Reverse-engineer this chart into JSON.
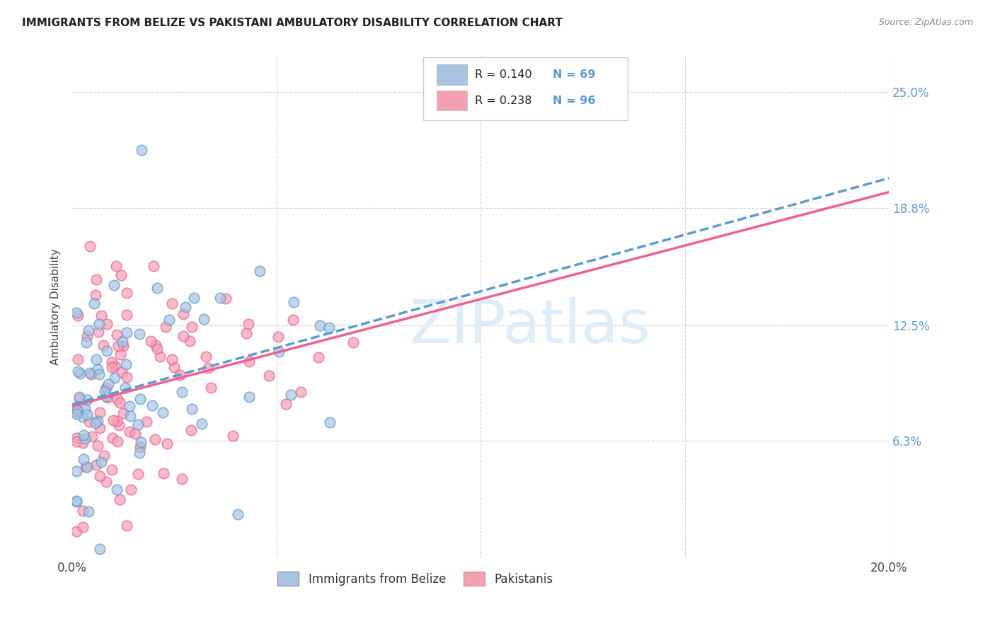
{
  "title": "IMMIGRANTS FROM BELIZE VS PAKISTANI AMBULATORY DISABILITY CORRELATION CHART",
  "source": "Source: ZipAtlas.com",
  "ylabel": "Ambulatory Disability",
  "xmin": 0.0,
  "xmax": 0.2,
  "ymin": 0.0,
  "ymax": 0.27,
  "yticks": [
    0.063,
    0.125,
    0.188,
    0.25
  ],
  "ytick_labels": [
    "6.3%",
    "12.5%",
    "18.8%",
    "25.0%"
  ],
  "xticks": [
    0.0,
    0.05,
    0.1,
    0.15,
    0.2
  ],
  "color_belize": "#a8c4e0",
  "color_pakistani": "#f4a0b0",
  "trendline_belize": "#5b9bd5",
  "trendline_pakistani": "#f06090",
  "background_color": "#ffffff",
  "legend_r1_text": "R = 0.140",
  "legend_n1_text": "N = 69",
  "legend_r2_text": "R = 0.238",
  "legend_n2_text": "N = 96",
  "legend_text_color": "#5b9bd5",
  "watermark_text": "ZIPatlas",
  "bottom_label1": "Immigrants from Belize",
  "bottom_label2": "Pakistanis"
}
